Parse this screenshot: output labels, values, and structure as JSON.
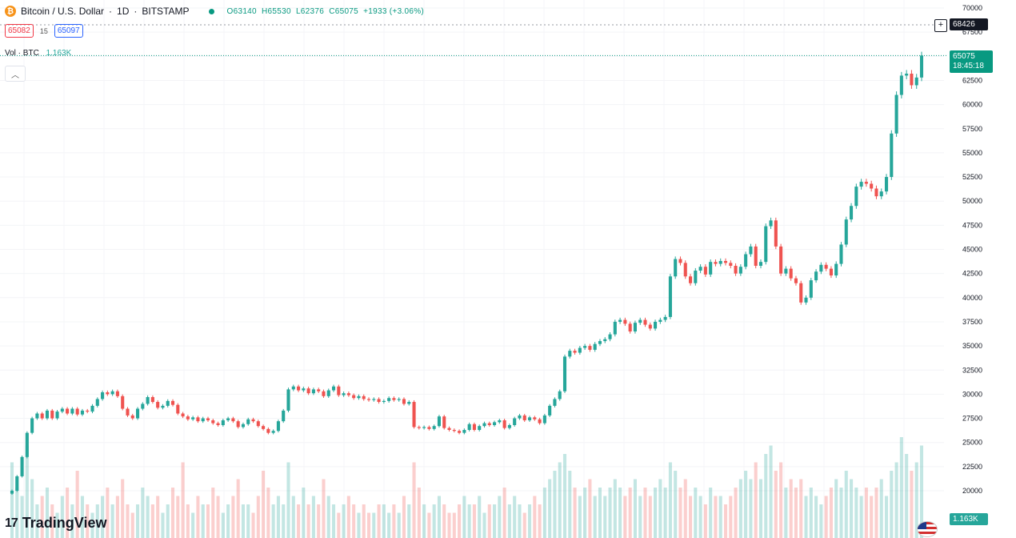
{
  "header": {
    "symbol": "Bitcoin / U.S. Dollar",
    "interval": "1D",
    "exchange": "BITSTAMP",
    "ohlc": {
      "open": "O63140",
      "high": "H65530",
      "low": "L62376",
      "close": "C65075",
      "change": "+1933 (+3.06%)"
    }
  },
  "trade": {
    "sell": "65082",
    "spread": "15",
    "buy": "65097"
  },
  "volume": {
    "label": "Vol · BTC",
    "value": "1.163K"
  },
  "axis_tags": {
    "crosshair": "68426",
    "last_price": "65075",
    "countdown": "18:45:18",
    "volume": "1.163K"
  },
  "branding": {
    "logo_text": "TradingView",
    "logo_mark": "17"
  },
  "colors": {
    "up": "#26a69a",
    "down": "#ef5350",
    "last": "#089981",
    "accent": "#2962ff"
  },
  "chart_data": {
    "type": "candlestick",
    "y_axis_labels": [
      "70000",
      "67500",
      "65000",
      "62500",
      "60000",
      "57500",
      "55000",
      "52500",
      "50000",
      "47500",
      "45000",
      "42500",
      "40000",
      "37500",
      "35000",
      "32500",
      "30000",
      "27500",
      "25000",
      "22500",
      "20000"
    ],
    "ylim": [
      20000,
      70000
    ],
    "closes": [
      20000,
      21500,
      23500,
      26000,
      27500,
      28000,
      27500,
      28300,
      27500,
      28200,
      28500,
      28000,
      28500,
      27900,
      28300,
      28200,
      28800,
      29500,
      30200,
      30000,
      30300,
      29800,
      28500,
      27800,
      27500,
      28500,
      29000,
      29700,
      29200,
      28600,
      28800,
      29300,
      28900,
      28000,
      27700,
      27400,
      27600,
      27200,
      27500,
      27300,
      27000,
      26800,
      27300,
      27500,
      27200,
      26600,
      26900,
      27400,
      27200,
      26700,
      26400,
      26000,
      26200,
      27200,
      28300,
      30500,
      30800,
      30400,
      30600,
      30100,
      30500,
      30300,
      29800,
      30400,
      30800,
      29900,
      30100,
      29900,
      29600,
      29800,
      29500,
      29400,
      29500,
      29200,
      29300,
      29600,
      29400,
      29500,
      29000,
      29200,
      26600,
      26500,
      26600,
      26400,
      26700,
      27700,
      26500,
      26300,
      26200,
      26000,
      26300,
      26900,
      26300,
      26700,
      27000,
      26800,
      27100,
      27300,
      26500,
      26800,
      27500,
      27800,
      27300,
      27600,
      27400,
      27000,
      27800,
      28800,
      29500,
      30300,
      33900,
      34500,
      34300,
      34800,
      35000,
      34600,
      35200,
      35500,
      35700,
      36200,
      37500,
      37700,
      37300,
      36500,
      37400,
      37700,
      37200,
      36800,
      37500,
      37700,
      38000,
      42200,
      44000,
      43600,
      42200,
      41500,
      42800,
      43200,
      42400,
      43700,
      43500,
      43800,
      43600,
      43300,
      42500,
      43200,
      44500,
      45300,
      43300,
      43700,
      47400,
      48000,
      45300,
      42500,
      43000,
      42000,
      41500,
      39500,
      40000,
      41800,
      42700,
      43400,
      43000,
      42300,
      43500,
      45500,
      48100,
      49500,
      51500,
      52000,
      51800,
      51300,
      50500,
      51000,
      52500,
      57000,
      61000,
      63000,
      63200,
      62000,
      62800,
      65075
    ],
    "volumes": [
      0.9,
      0.6,
      0.5,
      1.1,
      0.7,
      0.4,
      0.5,
      0.6,
      0.4,
      0.3,
      0.5,
      0.6,
      0.4,
      0.8,
      0.5,
      0.4,
      0.3,
      0.4,
      0.5,
      0.6,
      0.4,
      0.5,
      0.7,
      0.4,
      0.3,
      0.4,
      0.6,
      0.5,
      0.4,
      0.5,
      0.3,
      0.4,
      0.6,
      0.5,
      0.9,
      0.4,
      0.3,
      0.5,
      0.4,
      0.4,
      0.6,
      0.5,
      0.3,
      0.4,
      0.5,
      0.7,
      0.4,
      0.4,
      0.3,
      0.5,
      0.8,
      0.6,
      0.4,
      0.5,
      0.4,
      0.9,
      0.5,
      0.4,
      0.6,
      0.4,
      0.5,
      0.4,
      0.7,
      0.5,
      0.4,
      0.3,
      0.4,
      0.5,
      0.4,
      0.3,
      0.4,
      0.3,
      0.3,
      0.4,
      0.4,
      0.3,
      0.4,
      0.3,
      0.5,
      0.4,
      0.9,
      0.6,
      0.4,
      0.3,
      0.4,
      0.5,
      0.4,
      0.3,
      0.3,
      0.4,
      0.5,
      0.4,
      0.4,
      0.5,
      0.3,
      0.4,
      0.4,
      0.5,
      0.6,
      0.4,
      0.5,
      0.4,
      0.3,
      0.4,
      0.5,
      0.4,
      0.6,
      0.7,
      0.8,
      0.9,
      1.0,
      0.8,
      0.6,
      0.5,
      0.6,
      0.7,
      0.5,
      0.6,
      0.5,
      0.6,
      0.7,
      0.6,
      0.5,
      0.6,
      0.7,
      0.5,
      0.6,
      0.5,
      0.6,
      0.7,
      0.6,
      0.9,
      0.8,
      0.6,
      0.7,
      0.5,
      0.6,
      0.5,
      0.4,
      0.6,
      0.5,
      0.5,
      0.4,
      0.5,
      0.6,
      0.7,
      0.8,
      0.7,
      0.9,
      0.7,
      1.0,
      1.1,
      0.8,
      0.9,
      0.6,
      0.7,
      0.6,
      0.7,
      0.5,
      0.6,
      0.5,
      0.4,
      0.5,
      0.6,
      0.7,
      0.6,
      0.8,
      0.7,
      0.6,
      0.5,
      0.6,
      0.5,
      0.6,
      0.7,
      0.5,
      0.8,
      0.9,
      1.2,
      1.0,
      0.8,
      0.9,
      1.1
    ]
  }
}
